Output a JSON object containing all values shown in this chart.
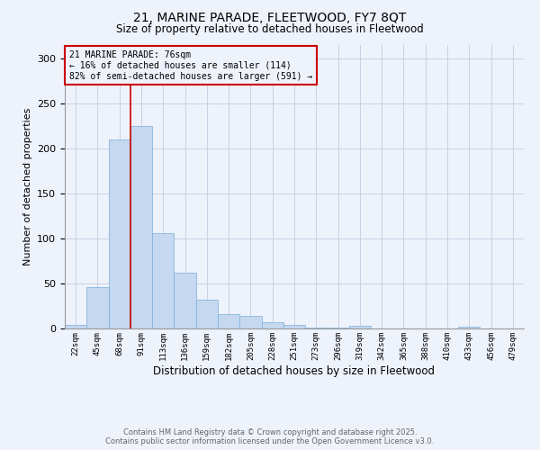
{
  "title_line1": "21, MARINE PARADE, FLEETWOOD, FY7 8QT",
  "title_line2": "Size of property relative to detached houses in Fleetwood",
  "xlabel": "Distribution of detached houses by size in Fleetwood",
  "ylabel": "Number of detached properties",
  "bin_labels": [
    "22sqm",
    "45sqm",
    "68sqm",
    "91sqm",
    "113sqm",
    "136sqm",
    "159sqm",
    "182sqm",
    "205sqm",
    "228sqm",
    "251sqm",
    "273sqm",
    "296sqm",
    "319sqm",
    "342sqm",
    "365sqm",
    "388sqm",
    "410sqm",
    "433sqm",
    "456sqm",
    "479sqm"
  ],
  "bar_values": [
    4,
    46,
    210,
    225,
    106,
    62,
    32,
    16,
    14,
    7,
    4,
    1,
    1,
    3,
    0,
    0,
    0,
    0,
    2,
    0,
    0
  ],
  "bar_color": "#c5d8f0",
  "bar_edge_color": "#7aaedb",
  "ylim": [
    0,
    315
  ],
  "yticks": [
    0,
    50,
    100,
    150,
    200,
    250,
    300
  ],
  "vline_x_index": 2.5,
  "property_label": "21 MARINE PARADE: 76sqm",
  "annotation_line2": "← 16% of detached houses are smaller (114)",
  "annotation_line3": "82% of semi-detached houses are larger (591) →",
  "vline_color": "#cc0000",
  "annotation_box_color": "#cc0000",
  "footer_line1": "Contains HM Land Registry data © Crown copyright and database right 2025.",
  "footer_line2": "Contains public sector information licensed under the Open Government Licence v3.0.",
  "bg_color": "#eef2fb",
  "grid_color": "#c8d0e4"
}
